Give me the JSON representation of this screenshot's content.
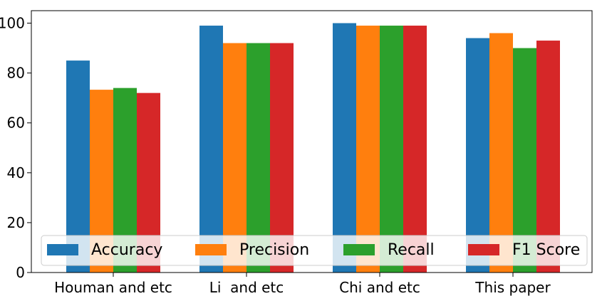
{
  "chart_data": {
    "type": "bar",
    "categories": [
      "Houman and etc",
      "Li  and etc",
      "Chi and etc",
      "This paper"
    ],
    "series": [
      {
        "name": "Accuracy",
        "color": "#1f77b4",
        "values": [
          85,
          99,
          100,
          94
        ]
      },
      {
        "name": "Precision",
        "color": "#ff7f0e",
        "values": [
          73.3,
          92,
          99,
          96
        ]
      },
      {
        "name": "Recall",
        "color": "#2ca02c",
        "values": [
          74,
          92,
          99,
          90
        ]
      },
      {
        "name": "F1 Score",
        "color": "#d62728",
        "values": [
          72,
          92,
          99,
          93
        ]
      }
    ],
    "title": "",
    "xlabel": "",
    "ylabel": "",
    "ylim": [
      0,
      105
    ],
    "yticks": [
      0,
      20,
      40,
      60,
      80,
      100
    ],
    "legend": "lower-center",
    "grid": false
  }
}
